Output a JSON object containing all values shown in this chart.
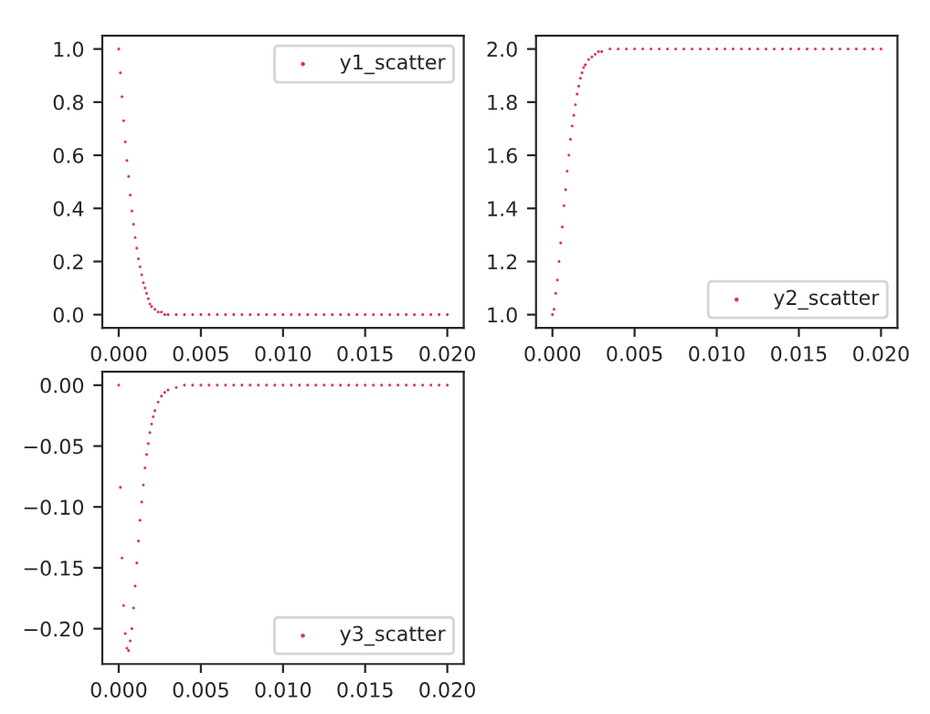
{
  "chart_data": [
    {
      "type": "scatter",
      "xlim": [
        -0.001,
        0.021
      ],
      "ylim": [
        -0.05,
        1.05
      ],
      "legend": "top right",
      "marker": "circle",
      "xticks": [
        {
          "value": 0,
          "label": "0.000"
        },
        {
          "value": 0.005,
          "label": "0.005"
        },
        {
          "value": 0.01,
          "label": "0.010"
        },
        {
          "value": 0.015,
          "label": "0.015"
        },
        {
          "value": 0.02,
          "label": "0.020"
        }
      ],
      "yticks": [
        {
          "value": 0,
          "label": "0.0"
        },
        {
          "value": 0.2,
          "label": "0.2"
        },
        {
          "value": 0.4,
          "label": "0.4"
        },
        {
          "value": 0.6,
          "label": "0.6"
        },
        {
          "value": 0.8,
          "label": "0.8"
        },
        {
          "value": 1,
          "label": "1.0"
        }
      ],
      "series": [
        {
          "name": "y1_scatter",
          "color": "#e0315a",
          "x": [
            0,
            0.0001,
            0.0002,
            0.0003,
            0.0004,
            0.0005,
            0.0006,
            0.0007,
            0.0008,
            0.0009,
            0.001,
            0.0011,
            0.0012,
            0.0013,
            0.0014,
            0.0015,
            0.0016,
            0.0017,
            0.0018,
            0.0019,
            0.002,
            0.0022,
            0.0024,
            0.0026,
            0.0028,
            0.003,
            0.0035,
            0.004,
            0.0045,
            0.005,
            0.0055,
            0.006,
            0.0065,
            0.007,
            0.0075,
            0.008,
            0.0085,
            0.009,
            0.0095,
            0.01,
            0.0105,
            0.011,
            0.0115,
            0.012,
            0.0125,
            0.013,
            0.0135,
            0.014,
            0.0145,
            0.015,
            0.0155,
            0.016,
            0.0165,
            0.017,
            0.0175,
            0.018,
            0.0185,
            0.019,
            0.0195,
            0.02
          ],
          "values": [
            1.0,
            0.91,
            0.82,
            0.73,
            0.65,
            0.58,
            0.52,
            0.45,
            0.39,
            0.34,
            0.29,
            0.25,
            0.21,
            0.18,
            0.15,
            0.12,
            0.1,
            0.08,
            0.06,
            0.04,
            0.03,
            0.02,
            0.01,
            0.01,
            0,
            0,
            0,
            0,
            0,
            0,
            0,
            0,
            0,
            0,
            0,
            0,
            0,
            0,
            0,
            0,
            0,
            0,
            0,
            0,
            0,
            0,
            0,
            0,
            0,
            0,
            0,
            0,
            0,
            0,
            0,
            0,
            0,
            0,
            0,
            0
          ]
        }
      ]
    },
    {
      "type": "scatter",
      "xlim": [
        -0.001,
        0.021
      ],
      "ylim": [
        0.95,
        2.05
      ],
      "legend": "bottom right",
      "marker": "circle",
      "xticks": [
        {
          "value": 0,
          "label": "0.000"
        },
        {
          "value": 0.005,
          "label": "0.005"
        },
        {
          "value": 0.01,
          "label": "0.010"
        },
        {
          "value": 0.015,
          "label": "0.015"
        },
        {
          "value": 0.02,
          "label": "0.020"
        }
      ],
      "yticks": [
        {
          "value": 1,
          "label": "1.0"
        },
        {
          "value": 1.2,
          "label": "1.2"
        },
        {
          "value": 1.4,
          "label": "1.4"
        },
        {
          "value": 1.6,
          "label": "1.6"
        },
        {
          "value": 1.8,
          "label": "1.8"
        },
        {
          "value": 2,
          "label": "2.0"
        }
      ],
      "series": [
        {
          "name": "y2_scatter",
          "color": "#e0315a",
          "x": [
            0,
            0.0001,
            0.0002,
            0.0003,
            0.0004,
            0.0005,
            0.0006,
            0.0007,
            0.0008,
            0.0009,
            0.001,
            0.0011,
            0.0012,
            0.0013,
            0.0014,
            0.0015,
            0.0016,
            0.0017,
            0.0018,
            0.0019,
            0.002,
            0.0022,
            0.0024,
            0.0026,
            0.0028,
            0.003,
            0.0035,
            0.004,
            0.0045,
            0.005,
            0.0055,
            0.006,
            0.0065,
            0.007,
            0.0075,
            0.008,
            0.0085,
            0.009,
            0.0095,
            0.01,
            0.0105,
            0.011,
            0.0115,
            0.012,
            0.0125,
            0.013,
            0.0135,
            0.014,
            0.0145,
            0.015,
            0.0155,
            0.016,
            0.0165,
            0.017,
            0.0175,
            0.018,
            0.0185,
            0.019,
            0.0195,
            0.02
          ],
          "values": [
            1.0,
            1.02,
            1.08,
            1.13,
            1.2,
            1.27,
            1.33,
            1.41,
            1.47,
            1.54,
            1.6,
            1.66,
            1.71,
            1.75,
            1.79,
            1.83,
            1.86,
            1.89,
            1.91,
            1.93,
            1.94,
            1.96,
            1.97,
            1.98,
            1.99,
            1.99,
            2.0,
            2.0,
            2.0,
            2.0,
            2.0,
            2.0,
            2.0,
            2.0,
            2.0,
            2.0,
            2.0,
            2.0,
            2.0,
            2.0,
            2.0,
            2.0,
            2.0,
            2.0,
            2.0,
            2.0,
            2.0,
            2.0,
            2.0,
            2.0,
            2.0,
            2.0,
            2.0,
            2.0,
            2.0,
            2.0,
            2.0,
            2.0,
            2.0,
            2.0
          ]
        }
      ]
    },
    {
      "type": "scatter",
      "xlim": [
        -0.001,
        0.021
      ],
      "ylim": [
        -0.229,
        0.011
      ],
      "legend": "bottom right",
      "marker": "circle",
      "xticks": [
        {
          "value": 0,
          "label": "0.000"
        },
        {
          "value": 0.005,
          "label": "0.005"
        },
        {
          "value": 0.01,
          "label": "0.010"
        },
        {
          "value": 0.015,
          "label": "0.015"
        },
        {
          "value": 0.02,
          "label": "0.020"
        }
      ],
      "yticks": [
        {
          "value": -0.2,
          "label": "−0.20"
        },
        {
          "value": -0.15,
          "label": "−0.15"
        },
        {
          "value": -0.1,
          "label": "−0.10"
        },
        {
          "value": -0.05,
          "label": "−0.05"
        },
        {
          "value": 0,
          "label": "0.00"
        }
      ],
      "series": [
        {
          "name": "y3_scatter",
          "color": "#e0315a",
          "x": [
            0,
            0.0001,
            0.0002,
            0.0003,
            0.0004,
            0.0005,
            0.0006,
            0.0007,
            0.0008,
            0.0009,
            0.001,
            0.0011,
            0.0012,
            0.0013,
            0.0014,
            0.0015,
            0.0016,
            0.0017,
            0.0018,
            0.0019,
            0.002,
            0.0021,
            0.0022,
            0.0024,
            0.0026,
            0.0028,
            0.003,
            0.0035,
            0.004,
            0.0045,
            0.005,
            0.0055,
            0.006,
            0.0065,
            0.007,
            0.0075,
            0.008,
            0.0085,
            0.009,
            0.0095,
            0.01,
            0.0105,
            0.011,
            0.0115,
            0.012,
            0.0125,
            0.013,
            0.0135,
            0.014,
            0.0145,
            0.015,
            0.0155,
            0.016,
            0.0165,
            0.017,
            0.0175,
            0.018,
            0.0185,
            0.019,
            0.0195,
            0.02
          ],
          "values": [
            0,
            -0.084,
            -0.142,
            -0.181,
            -0.204,
            -0.216,
            -0.218,
            -0.21,
            -0.2,
            -0.183,
            -0.165,
            -0.146,
            -0.128,
            -0.111,
            -0.096,
            -0.082,
            -0.068,
            -0.057,
            -0.048,
            -0.039,
            -0.032,
            -0.026,
            -0.021,
            -0.014,
            -0.009,
            -0.006,
            -0.004,
            -0.002,
            0,
            0,
            0,
            0,
            0,
            0,
            0,
            0,
            0,
            0,
            0,
            0,
            0,
            0,
            0,
            0,
            0,
            0,
            0,
            0,
            0,
            0,
            0,
            0,
            0,
            0,
            0,
            0,
            0,
            0,
            0,
            0,
            0
          ]
        }
      ]
    }
  ]
}
